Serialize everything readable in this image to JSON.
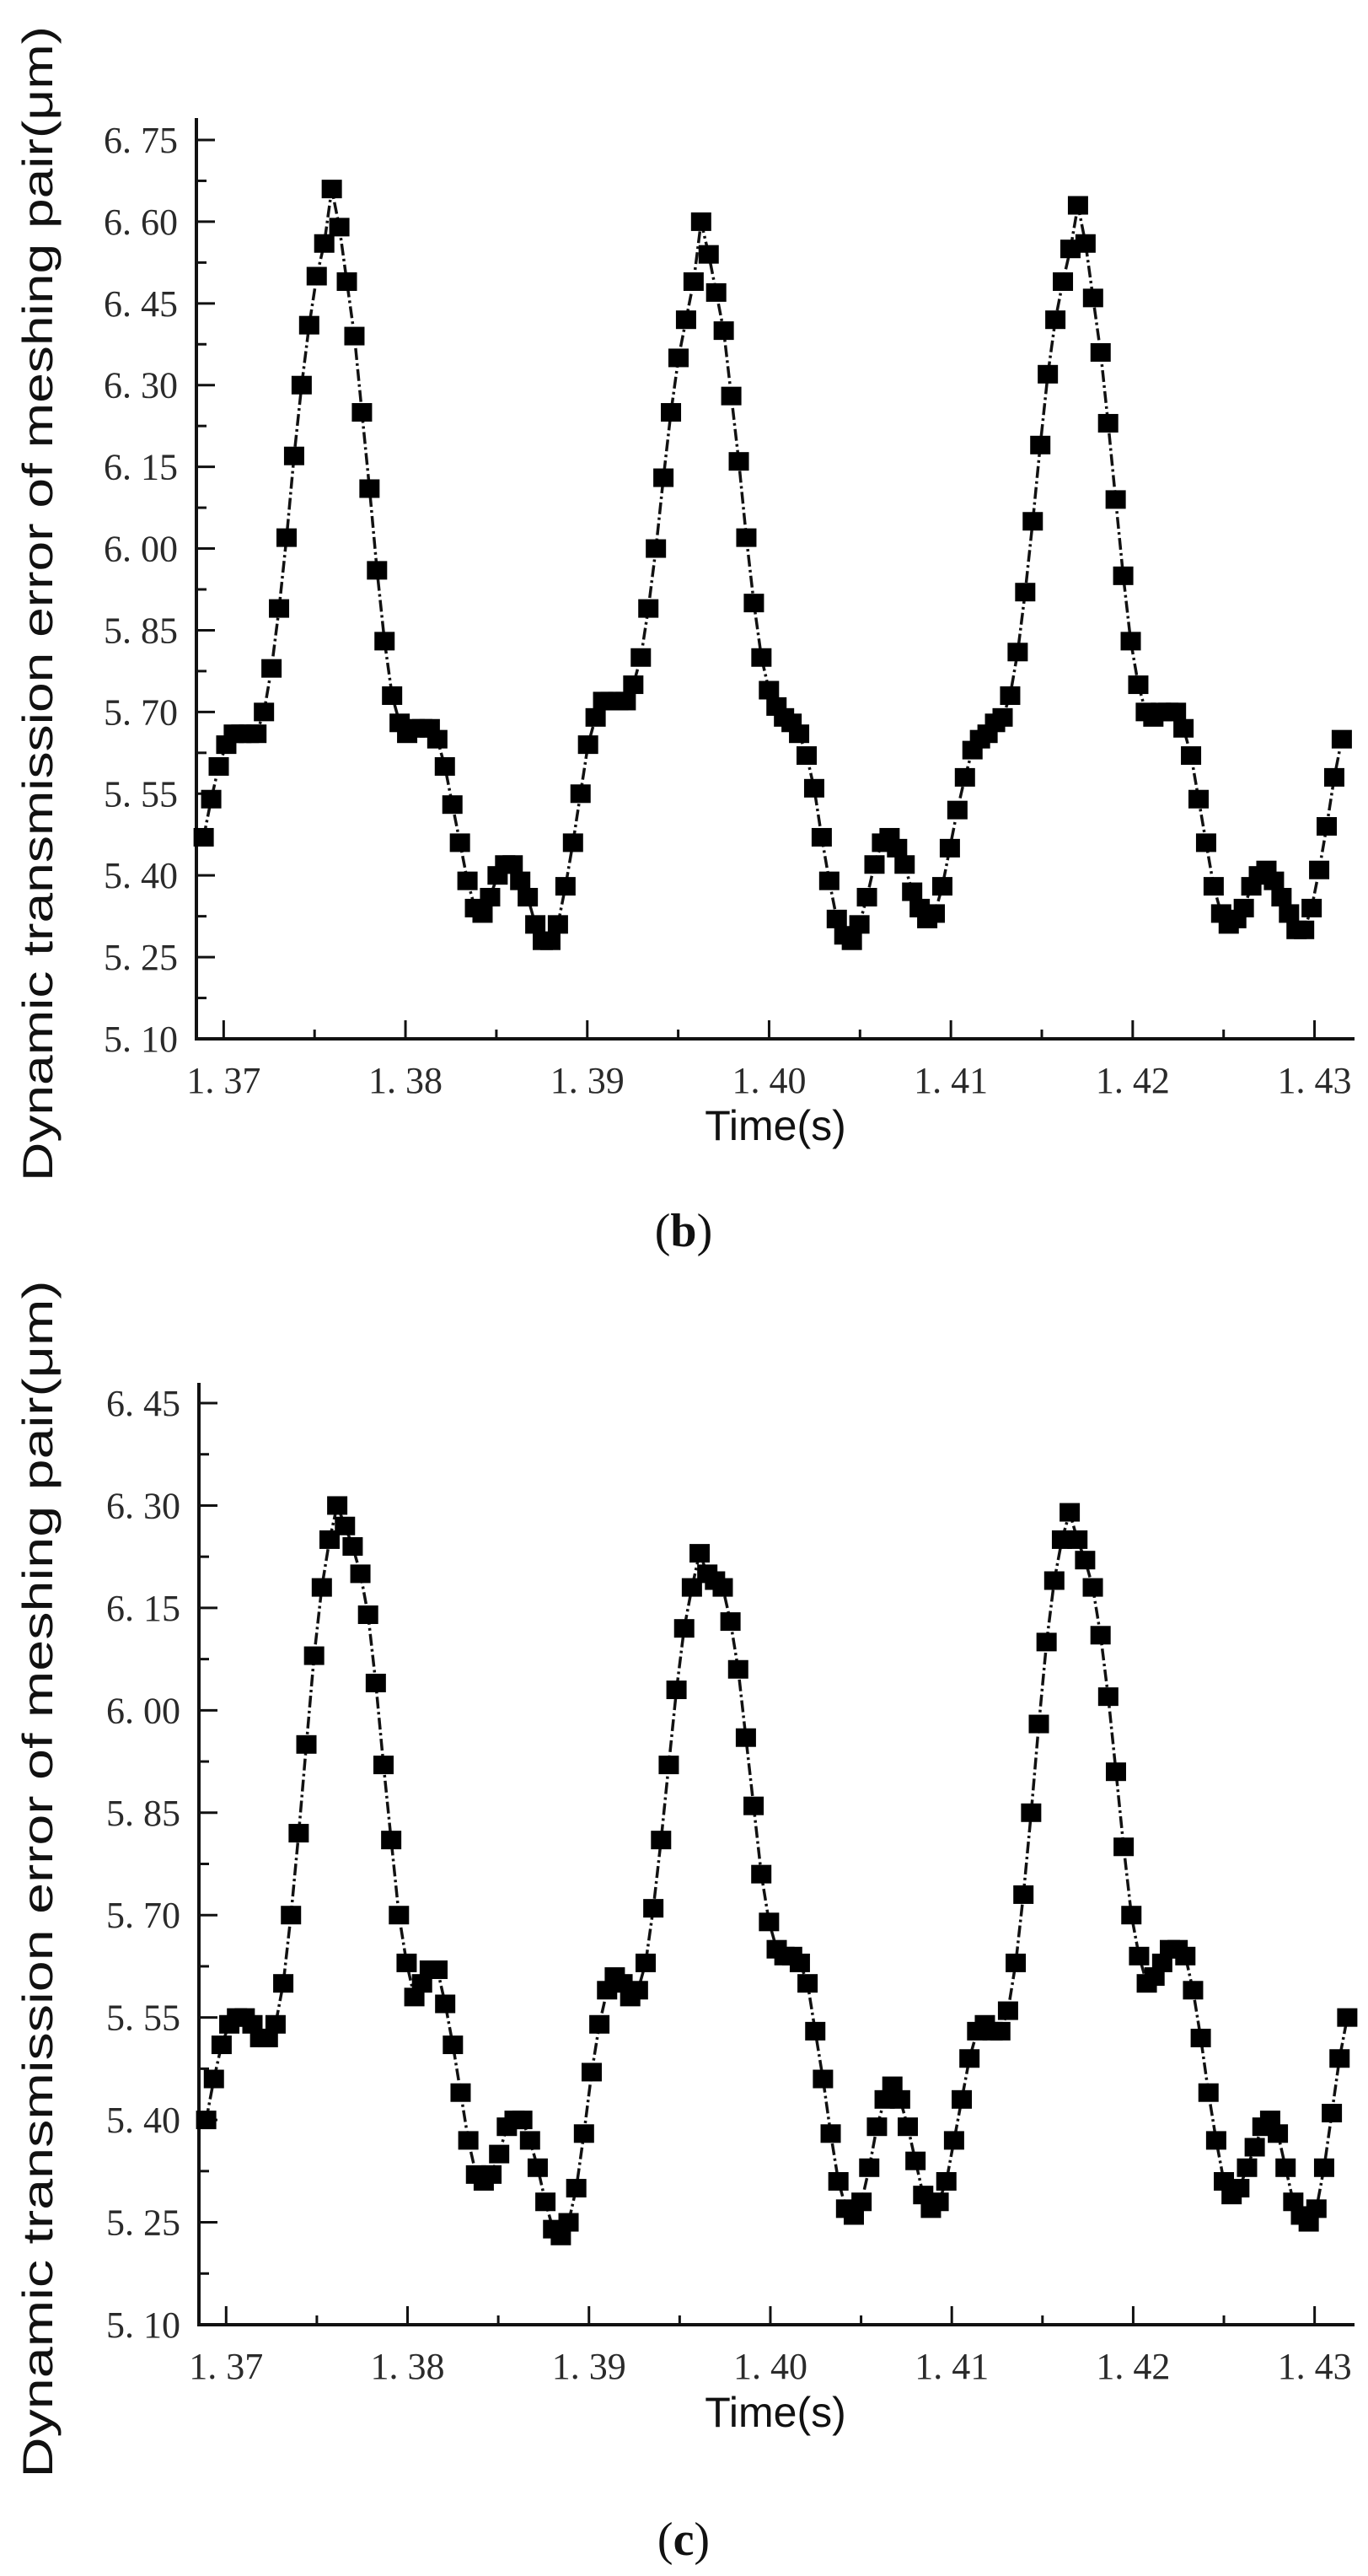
{
  "chart_data": [
    {
      "type": "line",
      "panel_label": "b",
      "marker": "square",
      "line_style": "dash-dot",
      "xlabel": "Time(s)",
      "ylabel": "Dynamic transmission error of meshing pair(μm)",
      "xlim": [
        1.3685,
        1.4322
      ],
      "ylim": [
        5.1,
        6.75
      ],
      "x_ticks": [
        1.37,
        1.38,
        1.39,
        1.4,
        1.41,
        1.42,
        1.43
      ],
      "x_tick_labels": [
        "1. 37",
        "1. 38",
        "1. 39",
        "1. 40",
        "1. 41",
        "1. 42",
        "1. 43"
      ],
      "y_ticks": [
        5.1,
        5.25,
        5.4,
        5.55,
        5.7,
        5.85,
        6.0,
        6.15,
        6.3,
        6.45,
        6.6,
        6.75
      ],
      "y_tick_labels": [
        "5. 10",
        "5. 25",
        "5. 40",
        "5. 55",
        "5. 70",
        "5. 85",
        "6. 00",
        "6. 15",
        "6. 30",
        "6. 45",
        "6. 60",
        "6. 75"
      ],
      "grid": false,
      "series": [
        {
          "name": "Dynamic transmission error",
          "x_start": 1.3689,
          "x_end": 1.4315,
          "values": [
            5.47,
            5.54,
            5.6,
            5.64,
            5.66,
            5.66,
            5.66,
            5.66,
            5.7,
            5.78,
            5.89,
            6.02,
            6.17,
            6.3,
            6.41,
            6.5,
            6.56,
            6.66,
            6.59,
            6.49,
            6.39,
            6.25,
            6.11,
            5.96,
            5.83,
            5.73,
            5.68,
            5.66,
            5.67,
            5.67,
            5.67,
            5.65,
            5.6,
            5.53,
            5.46,
            5.39,
            5.34,
            5.33,
            5.36,
            5.4,
            5.42,
            5.42,
            5.39,
            5.36,
            5.31,
            5.28,
            5.28,
            5.31,
            5.38,
            5.46,
            5.55,
            5.64,
            5.69,
            5.72,
            5.72,
            5.72,
            5.72,
            5.75,
            5.8,
            5.89,
            6.0,
            6.13,
            6.25,
            6.35,
            6.42,
            6.49,
            6.6,
            6.54,
            6.47,
            6.4,
            6.28,
            6.16,
            6.02,
            5.9,
            5.8,
            5.74,
            5.71,
            5.69,
            5.68,
            5.66,
            5.62,
            5.56,
            5.47,
            5.39,
            5.32,
            5.29,
            5.28,
            5.31,
            5.36,
            5.42,
            5.46,
            5.47,
            5.45,
            5.42,
            5.37,
            5.34,
            5.32,
            5.33,
            5.38,
            5.45,
            5.52,
            5.58,
            5.63,
            5.65,
            5.66,
            5.68,
            5.69,
            5.73,
            5.81,
            5.92,
            6.05,
            6.19,
            6.32,
            6.42,
            6.49,
            6.55,
            6.63,
            6.56,
            6.46,
            6.36,
            6.23,
            6.09,
            5.95,
            5.83,
            5.75,
            5.7,
            5.69,
            5.7,
            5.7,
            5.7,
            5.67,
            5.62,
            5.54,
            5.46,
            5.38,
            5.33,
            5.31,
            5.32,
            5.34,
            5.38,
            5.4,
            5.41,
            5.39,
            5.36,
            5.33,
            5.3,
            5.3,
            5.34,
            5.41,
            5.49,
            5.58,
            5.65
          ]
        }
      ]
    },
    {
      "type": "line",
      "panel_label": "c",
      "marker": "square",
      "line_style": "dash-dot",
      "xlabel": "Time(s)",
      "ylabel": "Dynamic transmission error of meshing pair(μm)",
      "xlim": [
        1.3685,
        1.4322
      ],
      "ylim": [
        5.1,
        6.45
      ],
      "x_ticks": [
        1.37,
        1.38,
        1.39,
        1.4,
        1.41,
        1.42,
        1.43
      ],
      "x_tick_labels": [
        "1. 37",
        "1. 38",
        "1. 39",
        "1. 40",
        "1. 41",
        "1. 42",
        "1. 43"
      ],
      "y_ticks": [
        5.1,
        5.25,
        5.4,
        5.55,
        5.7,
        5.85,
        6.0,
        6.15,
        6.3,
        6.45
      ],
      "y_tick_labels": [
        "5. 10",
        "5. 25",
        "5. 40",
        "5. 55",
        "5. 70",
        "5. 85",
        "6. 00",
        "6. 15",
        "6. 30",
        "6. 45"
      ],
      "grid": false,
      "series": [
        {
          "name": "Dynamic transmission error",
          "x_start": 1.3689,
          "x_end": 1.4318,
          "values": [
            5.4,
            5.46,
            5.51,
            5.54,
            5.55,
            5.55,
            5.54,
            5.52,
            5.52,
            5.54,
            5.6,
            5.7,
            5.82,
            5.95,
            6.08,
            6.18,
            6.25,
            6.3,
            6.27,
            6.24,
            6.2,
            6.14,
            6.04,
            5.92,
            5.81,
            5.7,
            5.63,
            5.58,
            5.6,
            5.62,
            5.62,
            5.57,
            5.51,
            5.44,
            5.37,
            5.32,
            5.31,
            5.32,
            5.35,
            5.39,
            5.4,
            5.4,
            5.37,
            5.33,
            5.28,
            5.24,
            5.23,
            5.25,
            5.3,
            5.38,
            5.47,
            5.54,
            5.59,
            5.61,
            5.6,
            5.58,
            5.59,
            5.63,
            5.71,
            5.81,
            5.92,
            6.03,
            6.12,
            6.18,
            6.23,
            6.2,
            6.19,
            6.18,
            6.13,
            6.06,
            5.96,
            5.86,
            5.76,
            5.69,
            5.65,
            5.64,
            5.64,
            5.63,
            5.6,
            5.53,
            5.46,
            5.38,
            5.31,
            5.27,
            5.26,
            5.28,
            5.33,
            5.39,
            5.43,
            5.45,
            5.43,
            5.39,
            5.34,
            5.29,
            5.27,
            5.28,
            5.31,
            5.37,
            5.43,
            5.49,
            5.53,
            5.54,
            5.53,
            5.53,
            5.56,
            5.63,
            5.73,
            5.85,
            5.98,
            6.1,
            6.19,
            6.25,
            6.29,
            6.25,
            6.22,
            6.18,
            6.11,
            6.02,
            5.91,
            5.8,
            5.7,
            5.64,
            5.6,
            5.61,
            5.63,
            5.65,
            5.65,
            5.64,
            5.59,
            5.52,
            5.44,
            5.37,
            5.31,
            5.29,
            5.3,
            5.33,
            5.36,
            5.39,
            5.4,
            5.38,
            5.33,
            5.28,
            5.26,
            5.25,
            5.27,
            5.33,
            5.41,
            5.49,
            5.55
          ]
        }
      ]
    }
  ]
}
